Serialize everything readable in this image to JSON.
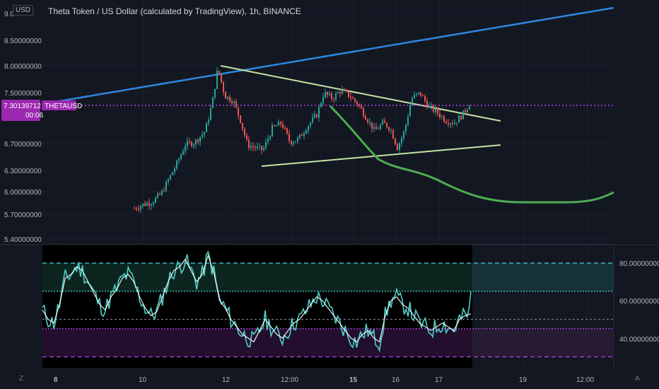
{
  "header": {
    "title": "Theta Token / US Dollar (calculated by TradingView), 1h, BINANCE",
    "currency_badge": "USD"
  },
  "price_badge": {
    "value": "7.30139712",
    "timer": "00:06",
    "symbol": "THETAUSD"
  },
  "bottom": {
    "z_label": "Z",
    "a_label": "A"
  },
  "colors": {
    "background": "#131722",
    "grid": "#1e222d",
    "up": "#26a69a",
    "down": "#ef5350",
    "trendline_blue": "#2e86de",
    "triangle": "#c5e3a5",
    "curve": "#4caf50",
    "price_line": "#b345e6",
    "rsi": "#4dd0c8",
    "rsi_ma": "#ffffff"
  },
  "chart_data": [
    {
      "type": "candlestick",
      "title": "Theta Token / US Dollar (calculated by TradingView), 1h, BINANCE",
      "y_ticks": [
        "9.0",
        "8.50000000",
        "8.00000000",
        "7.50000000",
        "6.70000000",
        "6.30000000",
        "6.00000000",
        "5.70000000",
        "5.40000000"
      ],
      "x_ticks": [
        "8",
        "10",
        "12",
        "12:00",
        "15",
        "16",
        "17",
        "19",
        "12:00"
      ],
      "current_price": 7.30139712,
      "ylim": [
        5.35,
        9.1
      ],
      "grid": true,
      "approx_closes": [
        {
          "x": "10",
          "y": 5.4
        },
        {
          "x": "10-12h",
          "y": 6.0
        },
        {
          "x": "11",
          "y": 6.55
        },
        {
          "x": "12",
          "y": 7.9
        },
        {
          "x": "12-06h",
          "y": 7.3
        },
        {
          "x": "12:00",
          "y": 6.6
        },
        {
          "x": "14",
          "y": 6.8
        },
        {
          "x": "14-12h",
          "y": 7.45
        },
        {
          "x": "15",
          "y": 7.35
        },
        {
          "x": "15-12h",
          "y": 6.85
        },
        {
          "x": "16",
          "y": 6.6
        },
        {
          "x": "16-12h",
          "y": 7.45
        },
        {
          "x": "17",
          "y": 7.05
        },
        {
          "x": "17-12h",
          "y": 7.3
        }
      ]
    },
    {
      "type": "line",
      "name": "RSI panel",
      "y_ticks": [
        "80.00000000",
        "60.00000000",
        "40.00000000"
      ],
      "ylim": [
        24,
        86
      ],
      "levels": [
        80,
        65,
        50,
        45,
        30
      ],
      "series": [
        {
          "values": [
            55,
            50,
            48,
            58,
            72,
            74,
            78,
            76,
            70,
            64,
            58,
            55,
            62,
            66,
            72,
            74,
            70,
            62,
            56,
            52,
            54,
            62,
            70,
            76,
            78,
            82,
            76,
            70,
            74,
            84,
            75,
            60,
            56,
            50,
            46,
            42,
            40,
            38,
            44,
            50,
            46,
            42,
            40,
            44,
            48,
            50,
            54,
            58,
            62,
            60,
            56,
            52,
            48,
            44,
            40,
            38,
            42,
            44,
            40,
            38,
            52,
            60,
            62,
            58,
            56,
            52,
            48,
            46,
            44,
            46,
            48,
            46,
            44,
            50,
            52,
            53
          ]
        }
      ]
    }
  ]
}
